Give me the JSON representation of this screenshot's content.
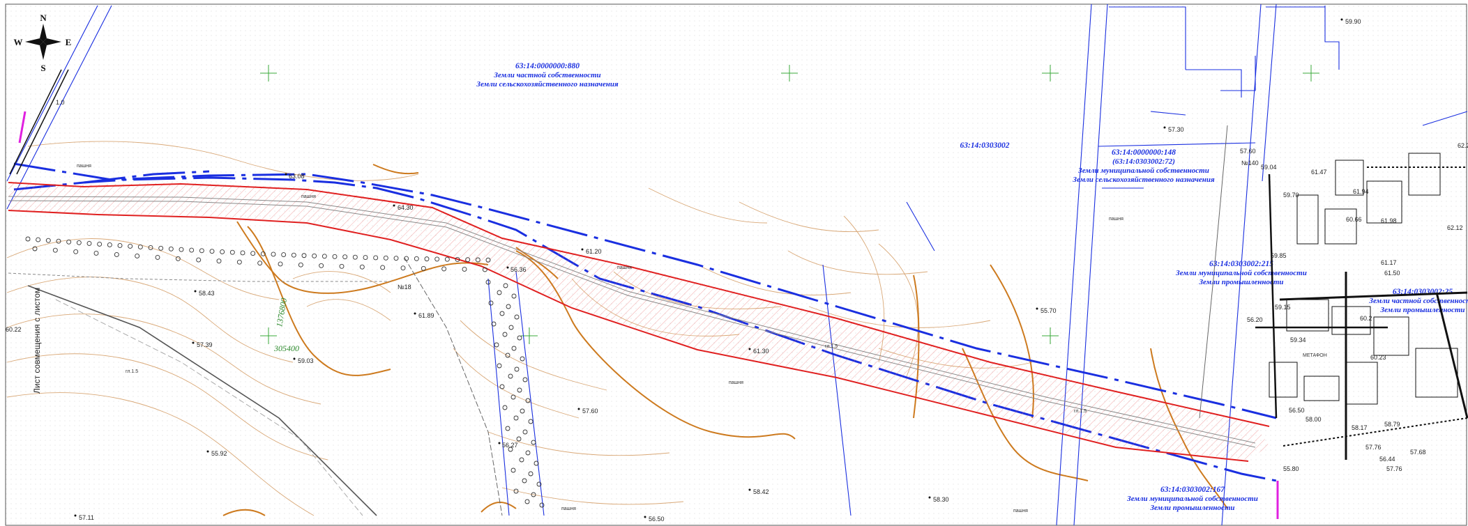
{
  "compass": {
    "north": "N",
    "south": "S",
    "east": "E",
    "west": "W"
  },
  "side_label": "Лист совмещения с листом",
  "parcels": [
    {
      "id": "63:14:0000000:880",
      "lines": [
        "Земли частной собственности",
        "Земли сельскохозяйственного назначения"
      ]
    },
    {
      "id": "63:14:0303002",
      "lines": []
    },
    {
      "id": "63:14:0000000:148",
      "lines": [
        "(63:14:0303002:72)",
        "Земли муниципальной собственности",
        "Земли сельскохозяйственного назначения"
      ]
    },
    {
      "id": "63:14:0303002:215",
      "lines": [
        "Земли муниципальной собственности",
        "Земли промышленности"
      ]
    },
    {
      "id": "63:14:0303002:25",
      "lines": [
        "Земли частной собственности",
        "Земли промышленности"
      ]
    },
    {
      "id": "63:14:0303002:167",
      "lines": [
        "Земли муниципальной собственности",
        "Земли промышленности"
      ]
    }
  ],
  "green_labels": [
    "1376800",
    "305400"
  ],
  "elevations": [
    "63.08",
    "64.30",
    "61.20",
    "58.43",
    "61.89",
    "57.39",
    "59.03",
    "60.22",
    "55.92",
    "57.11",
    "57.60",
    "56.27",
    "61.30",
    "55.70",
    "58.42",
    "56.50",
    "58.30",
    "57.30",
    "59.90",
    "56.36",
    "1.0"
  ],
  "tiny_labels": [
    "пашня",
    "пашня",
    "пашня",
    "пашня",
    "пашня",
    "пашня",
    "пашня",
    "№18",
    "№140",
    "МЕТАФОН",
    "гл.1.5",
    "гл.1.5",
    "гл.1.5"
  ],
  "right_block_numbers": [
    "57.60",
    "59.04",
    "59.70",
    "61.47",
    "61.94",
    "60.66",
    "61.98",
    "62.12",
    "61.17",
    "61.50",
    "59.85",
    "59.15",
    "56.20",
    "59.34",
    "60.2",
    "60.23",
    "58.00",
    "58.17",
    "58.79",
    "57.76",
    "56.50",
    "57.68",
    "56.44",
    "57.76",
    "55.80",
    "62.2"
  ],
  "colors": {
    "border": "#1a2fe0",
    "corridor": "#e02020",
    "contour": "#cd7a1e",
    "grid": "#39a839",
    "hatch": "#e86a6a"
  }
}
